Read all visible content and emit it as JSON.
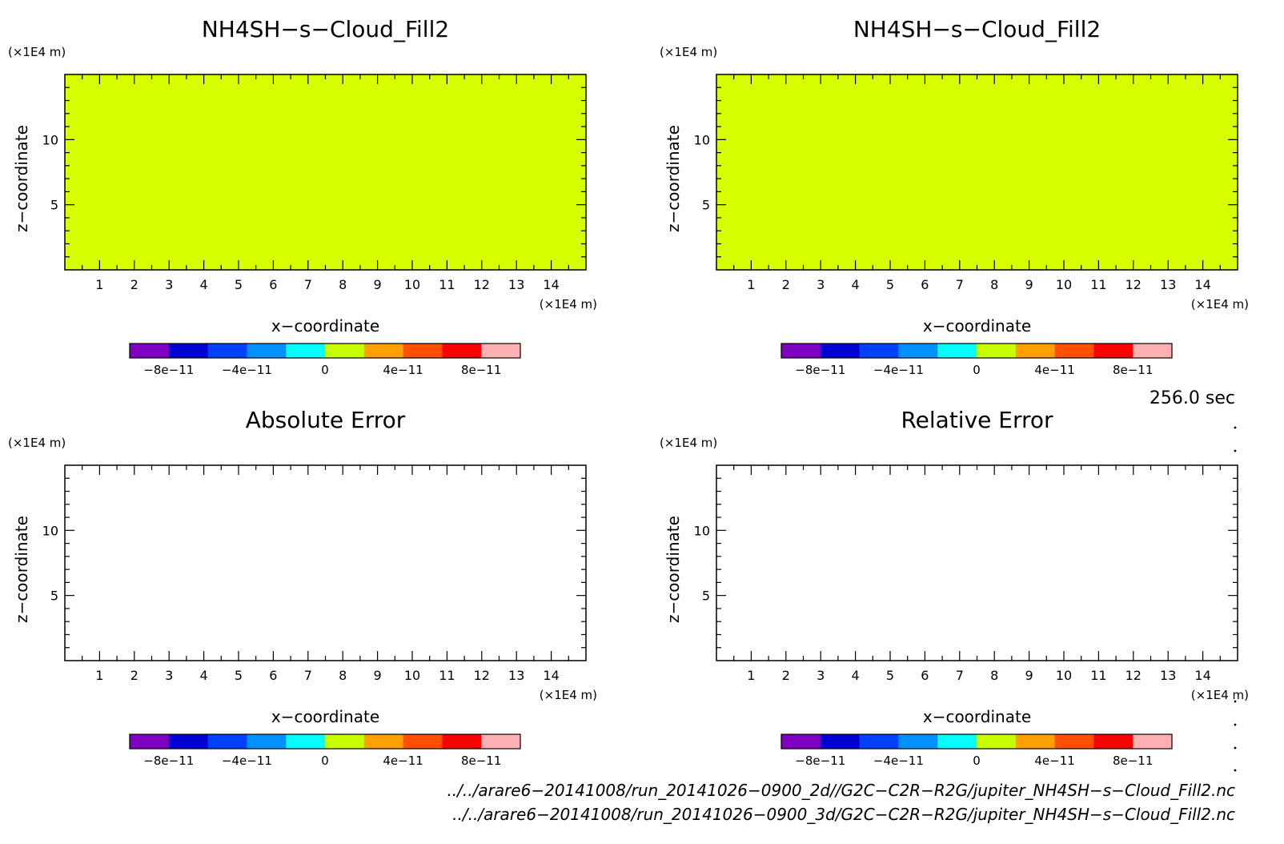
{
  "chart_data": [
    {
      "type": "heatmap",
      "title": "NH4SH−s−Cloud_Fill2",
      "xlabel": "x−coordinate",
      "ylabel": "z−coordinate",
      "x_unit": "(×1E4 m)",
      "y_unit": "(×1E4 m)",
      "xlim": [
        0,
        15
      ],
      "ylim": [
        0,
        15
      ],
      "x_ticks": [
        "1",
        "2",
        "3",
        "4",
        "5",
        "6",
        "7",
        "8",
        "9",
        "10",
        "11",
        "12",
        "13",
        "14"
      ],
      "y_ticks": [
        "5",
        "10"
      ],
      "field_value": 0,
      "fill_color": "#d7ff00",
      "colorbar": {
        "colors": [
          "#7f00c0",
          "#0000d0",
          "#0040ff",
          "#0090ff",
          "#00ffff",
          "#c8ff00",
          "#ffa000",
          "#ff5000",
          "#ff0000",
          "#ffb0b0"
        ],
        "labels": [
          "−8e−11",
          "−4e−11",
          "0",
          "4e−11",
          "8e−11"
        ],
        "range": [
          -1e-10,
          1e-10
        ]
      }
    },
    {
      "type": "heatmap",
      "title": "NH4SH−s−Cloud_Fill2",
      "xlabel": "x−coordinate",
      "ylabel": "z−coordinate",
      "x_unit": "(×1E4 m)",
      "y_unit": "(×1E4 m)",
      "xlim": [
        0,
        15
      ],
      "ylim": [
        0,
        15
      ],
      "x_ticks": [
        "1",
        "2",
        "3",
        "4",
        "5",
        "6",
        "7",
        "8",
        "9",
        "10",
        "11",
        "12",
        "13",
        "14"
      ],
      "y_ticks": [
        "5",
        "10"
      ],
      "field_value": 0,
      "fill_color": "#d7ff00",
      "colorbar": {
        "colors": [
          "#7f00c0",
          "#0000d0",
          "#0040ff",
          "#0090ff",
          "#00ffff",
          "#c8ff00",
          "#ffa000",
          "#ff5000",
          "#ff0000",
          "#ffb0b0"
        ],
        "labels": [
          "−8e−11",
          "−4e−11",
          "0",
          "4e−11",
          "8e−11"
        ],
        "range": [
          -1e-10,
          1e-10
        ]
      }
    },
    {
      "type": "heatmap",
      "title": "Absolute Error",
      "xlabel": "x−coordinate",
      "ylabel": "z−coordinate",
      "x_unit": "(×1E4 m)",
      "y_unit": "(×1E4 m)",
      "xlim": [
        0,
        15
      ],
      "ylim": [
        0,
        15
      ],
      "x_ticks": [
        "1",
        "2",
        "3",
        "4",
        "5",
        "6",
        "7",
        "8",
        "9",
        "10",
        "11",
        "12",
        "13",
        "14"
      ],
      "y_ticks": [
        "5",
        "10"
      ],
      "fill_color": "#ffffff",
      "colorbar": {
        "colors": [
          "#7f00c0",
          "#0000d0",
          "#0040ff",
          "#0090ff",
          "#00ffff",
          "#c8ff00",
          "#ffa000",
          "#ff5000",
          "#ff0000",
          "#ffb0b0"
        ],
        "labels": [
          "−8e−11",
          "−4e−11",
          "0",
          "4e−11",
          "8e−11"
        ],
        "range": [
          -1e-10,
          1e-10
        ]
      }
    },
    {
      "type": "heatmap",
      "title": "Relative Error",
      "xlabel": "x−coordinate",
      "ylabel": "z−coordinate",
      "x_unit": "(×1E4 m)",
      "y_unit": "(×1E4 m)",
      "xlim": [
        0,
        15
      ],
      "ylim": [
        0,
        15
      ],
      "x_ticks": [
        "1",
        "2",
        "3",
        "4",
        "5",
        "6",
        "7",
        "8",
        "9",
        "10",
        "11",
        "12",
        "13",
        "14"
      ],
      "y_ticks": [
        "5",
        "10"
      ],
      "fill_color": "#ffffff",
      "colorbar": {
        "colors": [
          "#7f00c0",
          "#0000d0",
          "#0040ff",
          "#0090ff",
          "#00ffff",
          "#c8ff00",
          "#ffa000",
          "#ff5000",
          "#ff0000",
          "#ffb0b0"
        ],
        "labels": [
          "−8e−11",
          "−4e−11",
          "0",
          "4e−11",
          "8e−11"
        ],
        "range": [
          -1e-10,
          1e-10
        ]
      }
    }
  ],
  "time_label": "256.0 sec",
  "footer": {
    "line1": "../../arare6−20141008/run_20141026−0900_2d//G2C−C2R−R2G/jupiter_NH4SH−s−Cloud_Fill2.nc",
    "line2": "../../arare6−20141008/run_20141026−0900_3d/G2C−C2R−R2G/jupiter_NH4SH−s−Cloud_Fill2.nc"
  }
}
